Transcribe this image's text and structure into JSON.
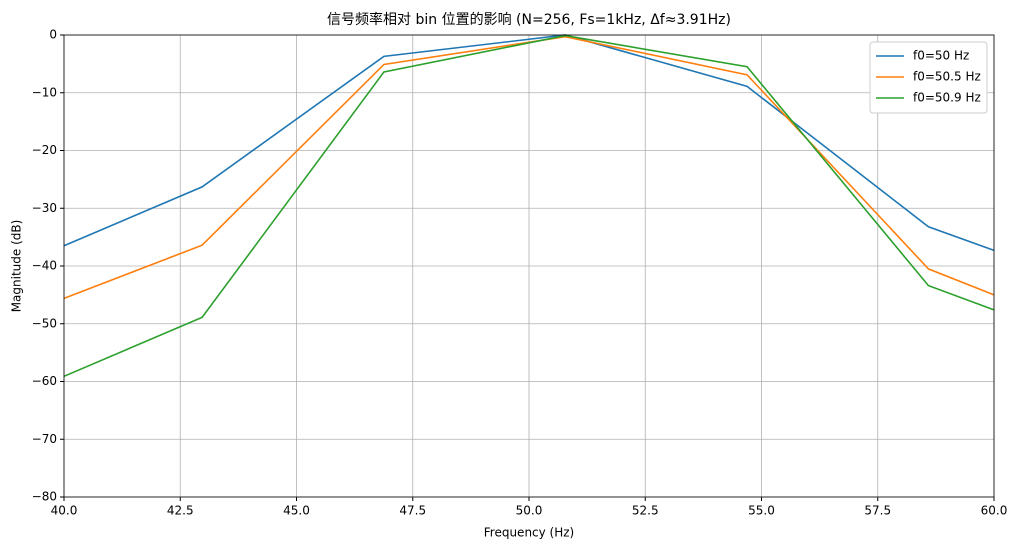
{
  "chart_data": {
    "type": "line",
    "title": "信号频率相对 bin 位置的影响 (N=256, Fs=1kHz, Δf≈3.91Hz)",
    "xlabel": "Frequency (Hz)",
    "ylabel": "Magnitude (dB)",
    "x": [
      40,
      42.97,
      46.88,
      50.78,
      54.69,
      58.59,
      60
    ],
    "series": [
      {
        "name": "f0=50 Hz",
        "color": "#1f77b4",
        "values": [
          -36.5,
          -26.3,
          -3.7,
          0,
          -8.9,
          -33.2,
          -37.3
        ]
      },
      {
        "name": "f0=50.5 Hz",
        "color": "#ff7f0e",
        "values": [
          -45.6,
          -36.4,
          -5.1,
          -0.3,
          -6.9,
          -40.5,
          -45.0
        ]
      },
      {
        "name": "f0=50.9 Hz",
        "color": "#2ca02c",
        "values": [
          -59.1,
          -48.9,
          -6.4,
          -0.1,
          -5.5,
          -43.4,
          -47.6
        ]
      }
    ],
    "xlim": [
      40,
      60
    ],
    "ylim": [
      -80,
      0
    ],
    "xticks": [
      {
        "value": 40,
        "label": "40.0"
      },
      {
        "value": 42.5,
        "label": "42.5"
      },
      {
        "value": 45,
        "label": "45.0"
      },
      {
        "value": 47.5,
        "label": "47.5"
      },
      {
        "value": 50,
        "label": "50.0"
      },
      {
        "value": 52.5,
        "label": "52.5"
      },
      {
        "value": 55,
        "label": "55.0"
      },
      {
        "value": 57.5,
        "label": "57.5"
      },
      {
        "value": 60,
        "label": "60.0"
      }
    ],
    "yticks": [
      0,
      {
        "value": -10,
        "label": "−10"
      },
      {
        "value": -20,
        "label": "−20"
      },
      {
        "value": -30,
        "label": "−30"
      },
      {
        "value": -40,
        "label": "−40"
      },
      {
        "value": -50,
        "label": "−50"
      },
      {
        "value": -60,
        "label": "−60"
      },
      {
        "value": -70,
        "label": "−70"
      },
      {
        "value": -80,
        "label": "−80"
      }
    ],
    "grid": true,
    "legend": "upper-right"
  }
}
